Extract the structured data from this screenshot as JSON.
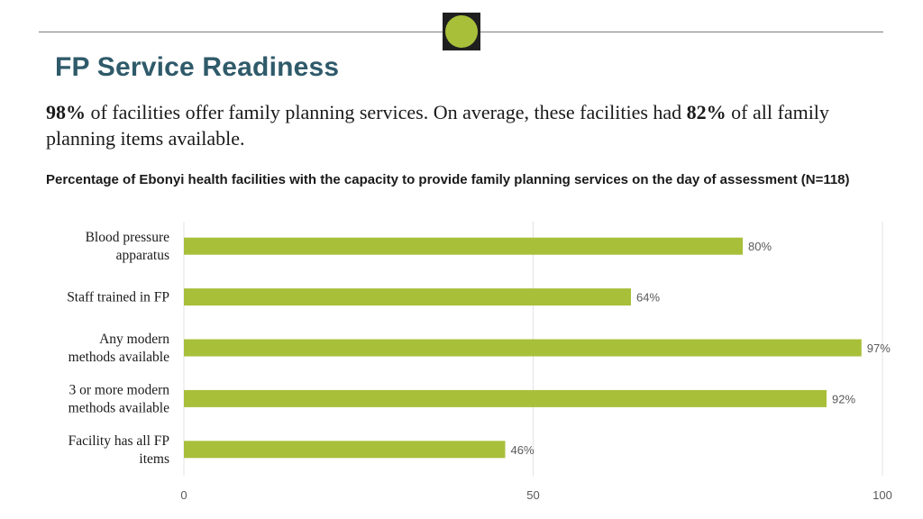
{
  "header": {
    "title": "FP Service Readiness",
    "logo_icon": "green-circle-logo-icon"
  },
  "summary": {
    "pct_offer": "98%",
    "text_a": " of facilities offer family planning services. On average, these facilities had ",
    "pct_items": "82%",
    "text_b": " of all family planning items available."
  },
  "chart_data": {
    "type": "bar",
    "orientation": "horizontal",
    "title": "Percentage of Ebonyi health facilities with the capacity to provide family planning services on the day of assessment (N=118)",
    "categories": [
      [
        "Blood pressure",
        "apparatus"
      ],
      [
        "Staff trained in FP"
      ],
      [
        "Any modern",
        "methods available"
      ],
      [
        "3 or more modern",
        "methods available"
      ],
      [
        "Facility has all FP",
        "items"
      ]
    ],
    "values": [
      80,
      64,
      97,
      92,
      46
    ],
    "data_labels": [
      "80%",
      "64%",
      "97%",
      "92%",
      "46%"
    ],
    "xlim": [
      0,
      100
    ],
    "xticks": [
      0,
      50,
      100
    ],
    "grid": true,
    "bar_color": "#a8bf3a",
    "xlabel": "",
    "ylabel": ""
  }
}
